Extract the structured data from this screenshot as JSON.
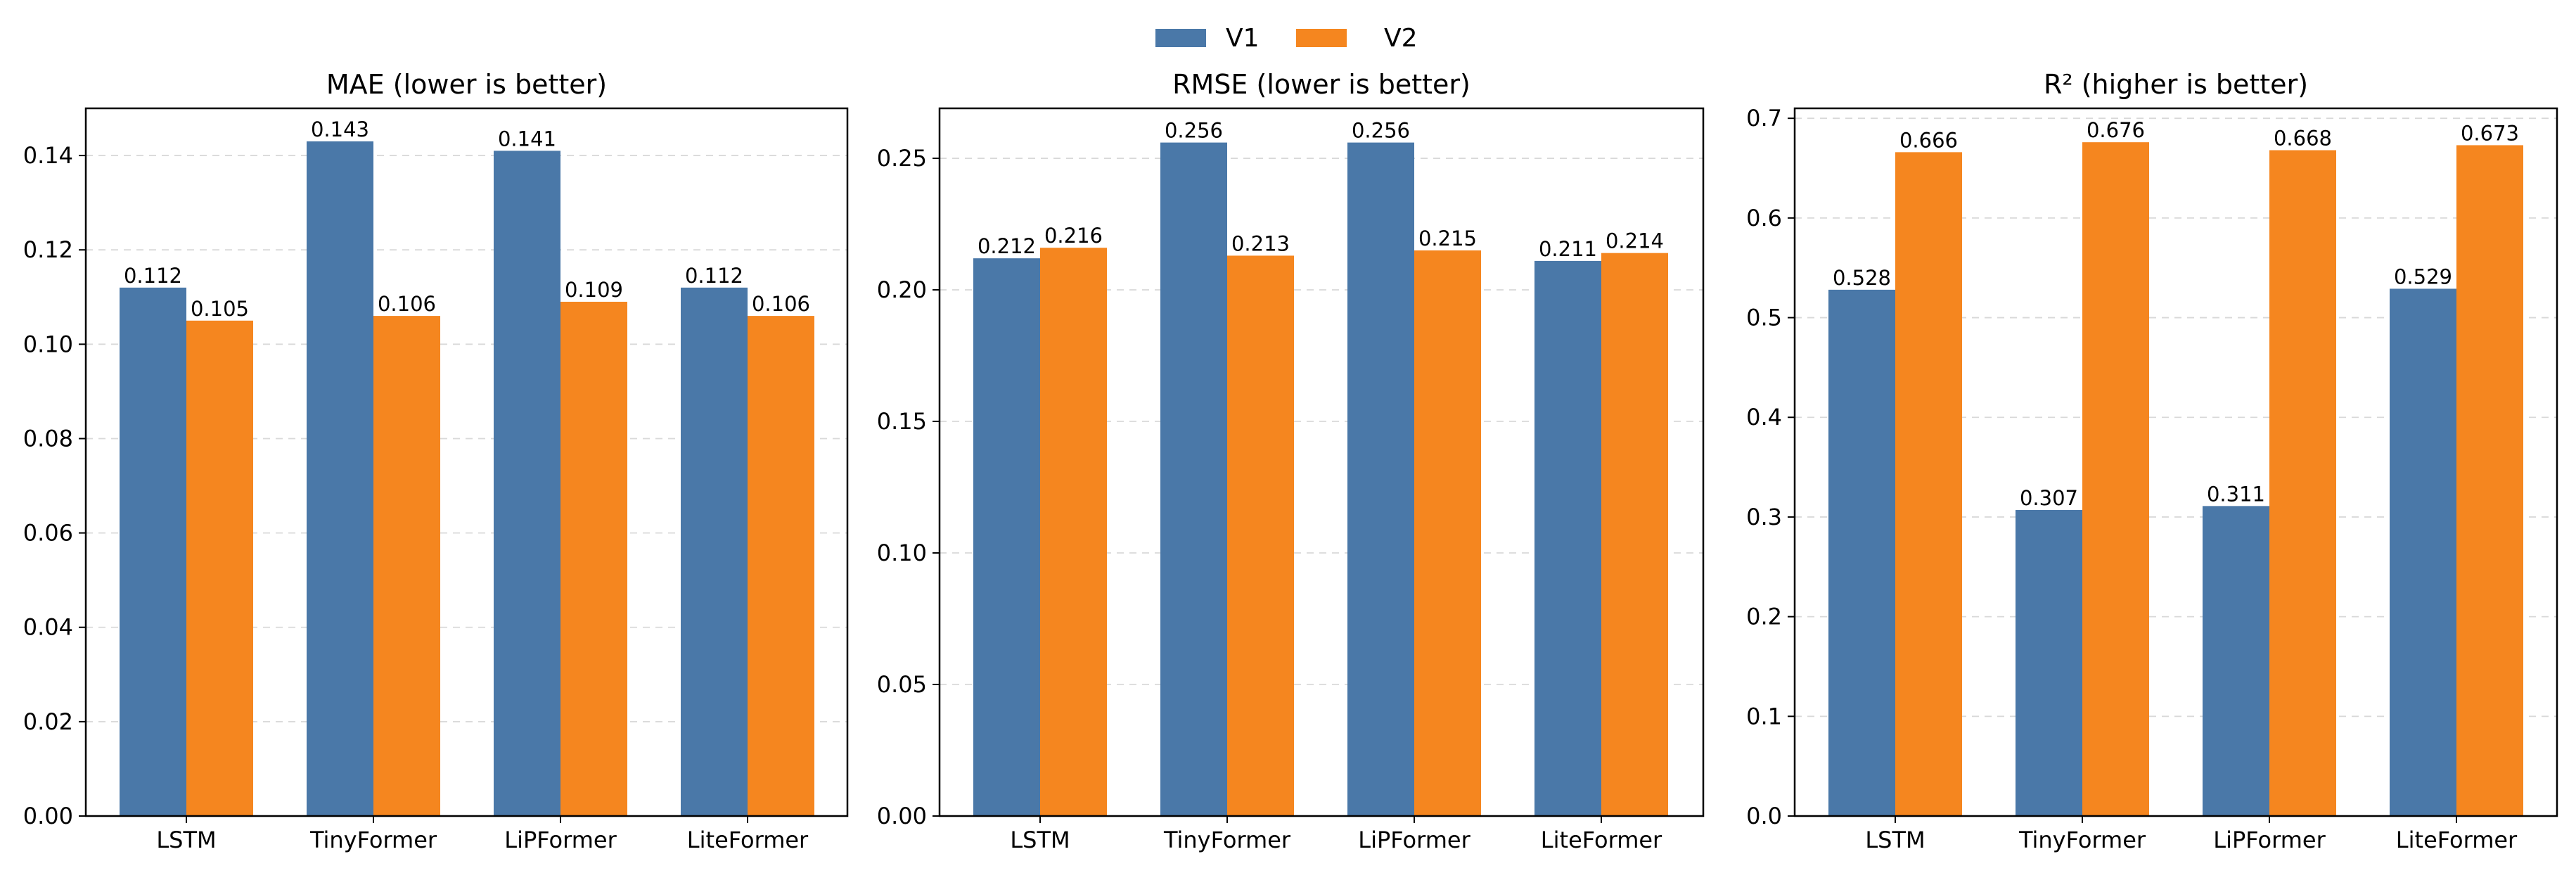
{
  "legend": {
    "placement": "top-center",
    "items": [
      {
        "name": "V1",
        "color": "#4a78a8"
      },
      {
        "name": "V2",
        "color": "#f5861f"
      }
    ]
  },
  "chart_data": [
    {
      "type": "bar",
      "title": "MAE (lower is better)",
      "categories": [
        "LSTM",
        "TinyFormer",
        "LiPFormer",
        "LiteFormer"
      ],
      "series": [
        {
          "name": "V1",
          "values": [
            0.112,
            0.143,
            0.141,
            0.112
          ],
          "labels": [
            "0.112",
            "0.143",
            "0.141",
            "0.112"
          ]
        },
        {
          "name": "V2",
          "values": [
            0.105,
            0.106,
            0.109,
            0.106
          ],
          "labels": [
            "0.105",
            "0.106",
            "0.109",
            "0.106"
          ]
        }
      ],
      "ylim": [
        0,
        0.15
      ],
      "yticks": [
        0.0,
        0.02,
        0.04,
        0.06,
        0.08,
        0.1,
        0.12,
        0.14
      ],
      "ytick_labels": [
        "0.00",
        "0.02",
        "0.04",
        "0.06",
        "0.08",
        "0.10",
        "0.12",
        "0.14"
      ],
      "grid": true
    },
    {
      "type": "bar",
      "title": "RMSE (lower is better)",
      "categories": [
        "LSTM",
        "TinyFormer",
        "LiPFormer",
        "LiteFormer"
      ],
      "series": [
        {
          "name": "V1",
          "values": [
            0.212,
            0.256,
            0.256,
            0.211
          ],
          "labels": [
            "0.212",
            "0.256",
            "0.256",
            "0.211"
          ]
        },
        {
          "name": "V2",
          "values": [
            0.216,
            0.213,
            0.215,
            0.214
          ],
          "labels": [
            "0.216",
            "0.213",
            "0.215",
            "0.214"
          ]
        }
      ],
      "ylim": [
        0,
        0.269
      ],
      "yticks": [
        0.0,
        0.05,
        0.1,
        0.15,
        0.2,
        0.25
      ],
      "ytick_labels": [
        "0.00",
        "0.05",
        "0.10",
        "0.15",
        "0.20",
        "0.25"
      ],
      "grid": true
    },
    {
      "type": "bar",
      "title": "R² (higher is better)",
      "categories": [
        "LSTM",
        "TinyFormer",
        "LiPFormer",
        "LiteFormer"
      ],
      "series": [
        {
          "name": "V1",
          "values": [
            0.528,
            0.307,
            0.311,
            0.529
          ],
          "labels": [
            "0.528",
            "0.307",
            "0.311",
            "0.529"
          ]
        },
        {
          "name": "V2",
          "values": [
            0.666,
            0.676,
            0.668,
            0.673
          ],
          "labels": [
            "0.666",
            "0.676",
            "0.668",
            "0.673"
          ]
        }
      ],
      "ylim": [
        0,
        0.71
      ],
      "yticks": [
        0.0,
        0.1,
        0.2,
        0.3,
        0.4,
        0.5,
        0.6,
        0.7
      ],
      "ytick_labels": [
        "0.0",
        "0.1",
        "0.2",
        "0.3",
        "0.4",
        "0.5",
        "0.6",
        "0.7"
      ],
      "grid": true
    }
  ]
}
